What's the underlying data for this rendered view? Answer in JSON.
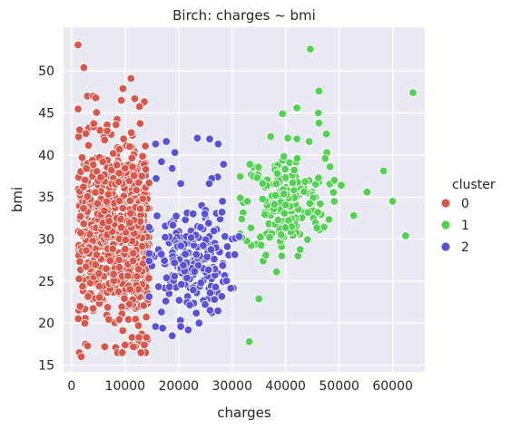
{
  "chart_data": {
    "type": "scatter",
    "title": "Birch: charges ~ bmi",
    "xlabel": "charges",
    "ylabel": "bmi",
    "xlim": [
      -1500,
      66000
    ],
    "ylim": [
      14.2,
      55.2
    ],
    "xticks": [
      0,
      10000,
      20000,
      30000,
      40000,
      50000,
      60000
    ],
    "yticks": [
      15,
      20,
      25,
      30,
      35,
      40,
      45,
      50
    ],
    "grid": true,
    "legend": {
      "title": "cluster",
      "placement": "right"
    },
    "series": [
      {
        "name": "0",
        "color": "#d9574a",
        "clusters": [
          {
            "cx": 6500,
            "cy": 30.5,
            "sx": 3800,
            "sy": 5.5,
            "n": 720
          }
        ],
        "points": [
          [
            1200,
            53.1
          ],
          [
            2300,
            50.4
          ],
          [
            4500,
            46.8
          ],
          [
            9300,
            46.5
          ],
          [
            9600,
            47.9
          ],
          [
            11100,
            49.1
          ],
          [
            11800,
            46.7
          ],
          [
            1500,
            43.0
          ],
          [
            8300,
            43.6
          ],
          [
            1800,
            16.0
          ],
          [
            2600,
            17.5
          ],
          [
            3000,
            17.3
          ],
          [
            6200,
            17.2
          ],
          [
            10000,
            17.4
          ],
          [
            11300,
            18.3
          ],
          [
            12600,
            18.3
          ],
          [
            13600,
            17.4
          ],
          [
            14000,
            18.3
          ],
          [
            12500,
            19.7
          ],
          [
            13500,
            22.1
          ],
          [
            14300,
            22.8
          ]
        ]
      },
      {
        "name": "1",
        "color": "#52d152",
        "clusters": [
          {
            "cx": 40000,
            "cy": 34.2,
            "sx": 3800,
            "sy": 3.0,
            "n": 180
          }
        ],
        "points": [
          [
            44600,
            52.6
          ],
          [
            63800,
            47.4
          ],
          [
            46200,
            47.6
          ],
          [
            42100,
            45.6
          ],
          [
            46100,
            45.0
          ],
          [
            39400,
            44.9
          ],
          [
            46200,
            43.8
          ],
          [
            40400,
            42.0
          ],
          [
            42100,
            41.9
          ],
          [
            44400,
            41.6
          ],
          [
            37200,
            42.2
          ],
          [
            58300,
            38.1
          ],
          [
            60000,
            34.5
          ],
          [
            55200,
            35.6
          ],
          [
            52700,
            32.8
          ],
          [
            62400,
            30.4
          ],
          [
            33300,
            38.9
          ],
          [
            33200,
            17.8
          ],
          [
            35000,
            22.9
          ],
          [
            38300,
            26.1
          ],
          [
            35800,
            27.4
          ],
          [
            36300,
            28.1
          ],
          [
            31800,
            30.2
          ],
          [
            49100,
            37.0
          ],
          [
            50400,
            36.4
          ],
          [
            48300,
            38.6
          ],
          [
            47400,
            39.6
          ],
          [
            47600,
            42.5
          ]
        ]
      },
      {
        "name": "2",
        "color": "#5a52d6",
        "clusters": [
          {
            "cx": 22000,
            "cy": 27.0,
            "sx": 3600,
            "sy": 3.0,
            "n": 210
          }
        ],
        "points": [
          [
            23500,
            42.0
          ],
          [
            25800,
            41.9
          ],
          [
            27400,
            41.3
          ],
          [
            28400,
            38.9
          ],
          [
            27300,
            37.4
          ],
          [
            26200,
            37.2
          ],
          [
            25700,
            36.6
          ],
          [
            28200,
            34.5
          ],
          [
            15700,
            41.3
          ],
          [
            17700,
            41.6
          ],
          [
            19300,
            40.3
          ],
          [
            18800,
            38.4
          ],
          [
            20400,
            36.6
          ],
          [
            21600,
            33.1
          ],
          [
            22700,
            33.0
          ],
          [
            24900,
            33.0
          ],
          [
            28100,
            33.2
          ],
          [
            15700,
            19.6
          ],
          [
            17000,
            19.4
          ],
          [
            18800,
            18.5
          ],
          [
            20400,
            19.6
          ],
          [
            21800,
            19.2
          ],
          [
            30600,
            30.1
          ],
          [
            31300,
            30.3
          ],
          [
            29100,
            29.1
          ],
          [
            25600,
            31.9
          ],
          [
            24100,
            31.4
          ],
          [
            15800,
            37.2
          ],
          [
            16800,
            39.2
          ]
        ]
      }
    ]
  }
}
